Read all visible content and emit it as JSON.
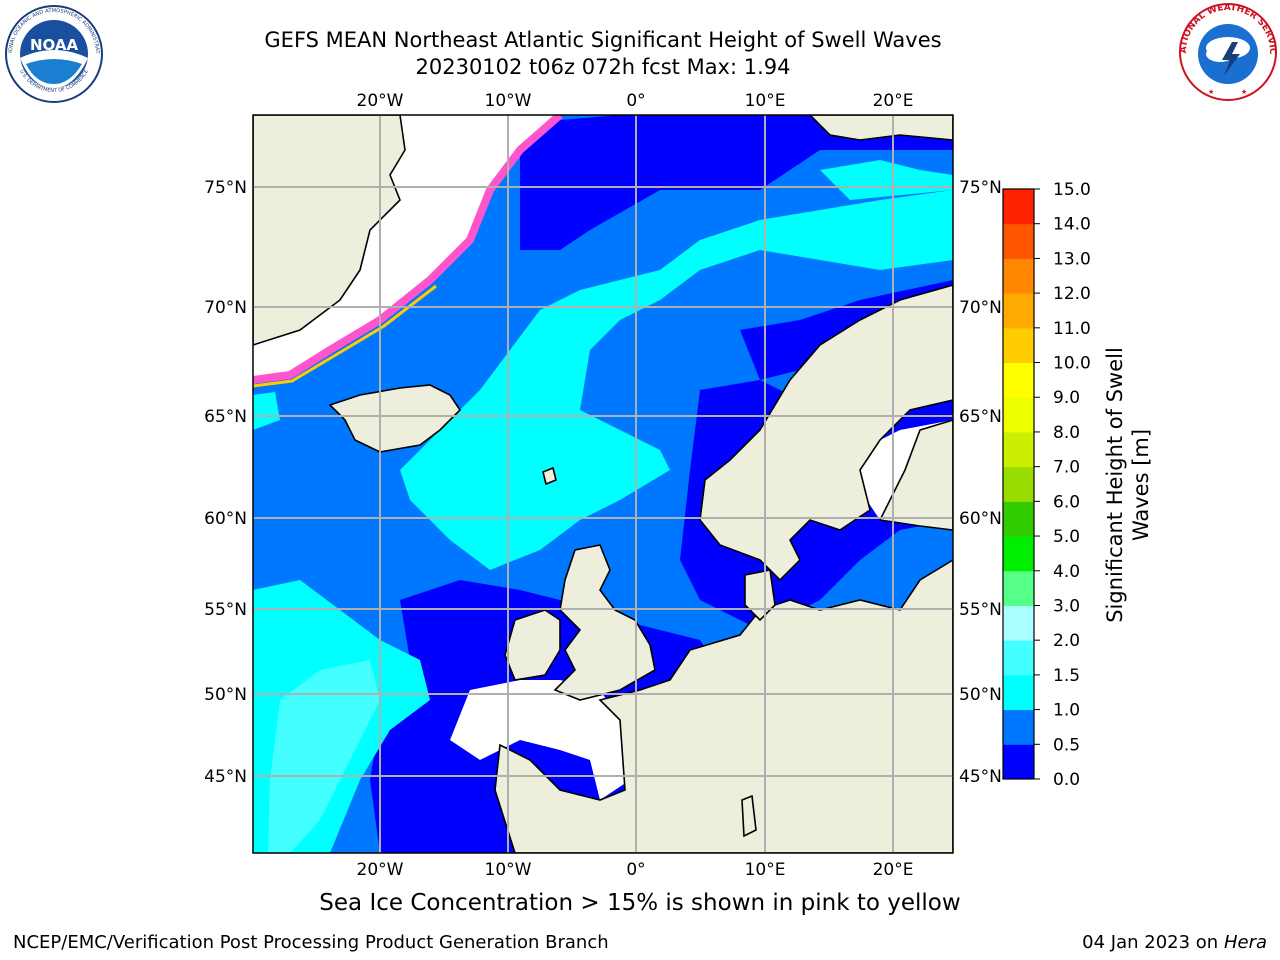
{
  "header": {
    "title_line1": "GEFS MEAN Northeast Atlantic Significant Height of Swell Waves",
    "title_line2": "20230102 t06z 072h fcst   Max: 1.94"
  },
  "logos": {
    "left": {
      "text": "NOAA",
      "ring_text": "NATIONAL OCEANIC AND ATMOSPHERIC ADMINISTRATION",
      "ring_text_bottom": "U.S. DEPARTMENT OF COMMERCE"
    },
    "right": {
      "ring_text": "NATIONAL WEATHER SERVICE"
    }
  },
  "map": {
    "lon_labels": [
      "20°W",
      "10°W",
      "0°",
      "10°E",
      "20°E"
    ],
    "lat_labels": [
      "75°N",
      "70°N",
      "65°N",
      "60°N",
      "55°N",
      "50°N",
      "45°N"
    ],
    "colors": {
      "land": "#eeeedd",
      "coast": "#000000",
      "grid": "#b0b0b0",
      "no_data": "#ffffff"
    }
  },
  "colorbar": {
    "label_line1": "Significant Height of Swell",
    "label_line2": "Waves [m]",
    "ticks": [
      "0.0",
      "0.5",
      "1.0",
      "1.5",
      "2.0",
      "3.0",
      "4.0",
      "5.0",
      "6.0",
      "7.0",
      "8.0",
      "9.0",
      "10.0",
      "11.0",
      "12.0",
      "13.0",
      "14.0",
      "15.0"
    ],
    "colors": [
      "#0000ff",
      "#0077ff",
      "#00ffff",
      "#44ffff",
      "#aaffff",
      "#55ff88",
      "#00ee00",
      "#33cc00",
      "#99dd00",
      "#ccee00",
      "#eeff00",
      "#ffff00",
      "#ffcc00",
      "#ffaa00",
      "#ff8800",
      "#ff5500",
      "#ff2200"
    ]
  },
  "sea_ice_note": "Sea Ice Concentration > 15% is shown in pink to yellow",
  "footer": {
    "left": "NCEP/EMC/Verification Post Processing Product Generation Branch",
    "right_prefix": "04 Jan 2023 on ",
    "right_host": "Hera"
  }
}
